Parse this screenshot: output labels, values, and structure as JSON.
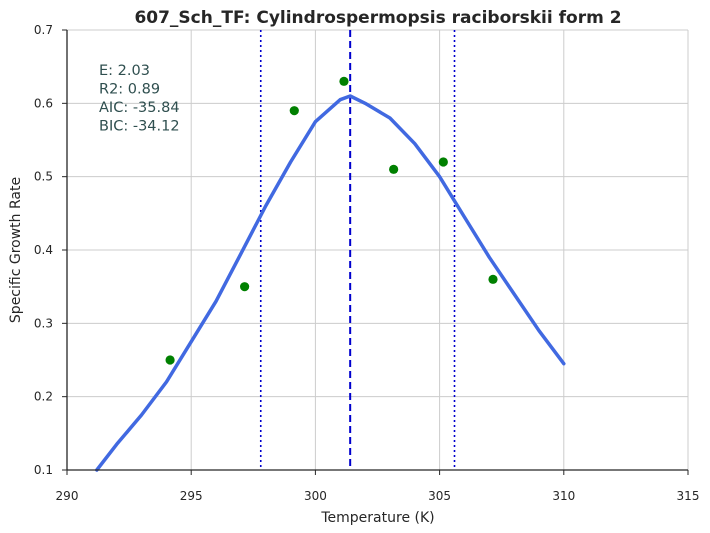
{
  "chart_data": {
    "type": "scatter",
    "title": "607_Sch_TF: Cylindrospermopsis raciborskii form 2",
    "xlabel": "Temperature (K)",
    "ylabel": "Specific Growth Rate",
    "xlim": [
      290,
      315
    ],
    "ylim": [
      0.1,
      0.7
    ],
    "xticks": [
      290,
      295,
      300,
      305,
      310,
      315
    ],
    "yticks": [
      0.1,
      0.2,
      0.3,
      0.4,
      0.5,
      0.6,
      0.7
    ],
    "grid": true,
    "points": [
      {
        "x": 294.15,
        "y": 0.25
      },
      {
        "x": 297.15,
        "y": 0.35
      },
      {
        "x": 299.15,
        "y": 0.59
      },
      {
        "x": 301.15,
        "y": 0.63
      },
      {
        "x": 303.15,
        "y": 0.51
      },
      {
        "x": 305.15,
        "y": 0.52
      },
      {
        "x": 307.15,
        "y": 0.36
      }
    ],
    "fit_curve": {
      "x": [
        291.2,
        292.0,
        293.0,
        294.0,
        295.0,
        296.0,
        297.0,
        298.0,
        299.0,
        300.0,
        301.0,
        301.4,
        302.0,
        303.0,
        304.0,
        305.0,
        306.0,
        307.0,
        308.0,
        309.0,
        310.0
      ],
      "y": [
        0.1,
        0.135,
        0.175,
        0.22,
        0.275,
        0.33,
        0.395,
        0.46,
        0.52,
        0.575,
        0.605,
        0.61,
        0.6,
        0.58,
        0.545,
        0.5,
        0.445,
        0.39,
        0.34,
        0.29,
        0.245
      ]
    },
    "vlines": [
      {
        "x": 301.4,
        "style": "dashed"
      },
      {
        "x": 297.8,
        "style": "dotted"
      },
      {
        "x": 305.6,
        "style": "dotted"
      }
    ],
    "annotations": [
      "E:  2.03",
      "R2:  0.89",
      "AIC: -35.84",
      "BIC: -34.12"
    ],
    "colors": {
      "points": "#008000",
      "curve": "#4169e1",
      "vlines": "#0000cd",
      "grid": "#cccccc",
      "axes": "#262626",
      "annotation": "#2f4f4f"
    }
  }
}
